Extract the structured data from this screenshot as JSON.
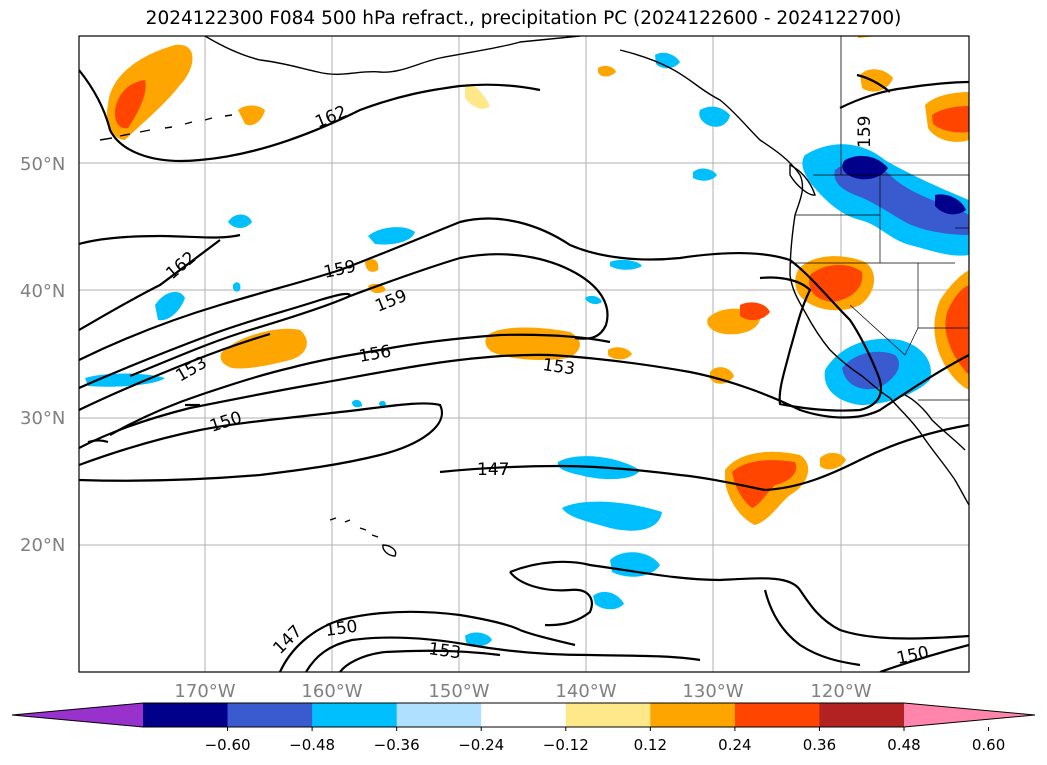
{
  "title": "2024122300 F084 500 hPa refract., precipitation PC (2024122600 - 2024122700)",
  "lat_labels": [
    "50°N",
    "40°N",
    "30°N",
    "20°N"
  ],
  "lon_labels": [
    "170°W",
    "160°W",
    "150°W",
    "140°W",
    "130°W",
    "120°W"
  ],
  "colorbar": {
    "colors": [
      "#9932cc",
      "#00008b",
      "#3a5bcf",
      "#00bfff",
      "#b0e0ff",
      "#ffffff",
      "#ffe88a",
      "#ffa500",
      "#ff4500",
      "#b22222",
      "#ff85ad"
    ],
    "tick_labels": [
      "−0.60",
      "−0.48",
      "−0.36",
      "−0.24",
      "−0.12",
      "0.12",
      "0.24",
      "0.36",
      "0.48",
      "0.60"
    ]
  },
  "contour_labels": [
    "162",
    "162",
    "159",
    "159",
    "159",
    "156",
    "153",
    "153",
    "153",
    "150",
    "150",
    "150",
    "147",
    "147"
  ]
}
